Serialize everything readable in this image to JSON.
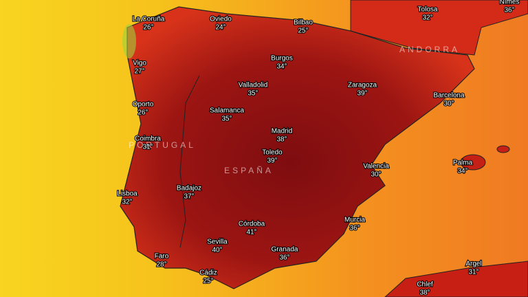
{
  "cities": [
    {
      "name": "La Coruña",
      "temp": "26°"
    },
    {
      "name": "Oviedo",
      "temp": "24°"
    },
    {
      "name": "Bilbao",
      "temp": "25°"
    },
    {
      "name": "Tolosa",
      "temp": "32°"
    },
    {
      "name": "Nîmes",
      "temp": "36°"
    },
    {
      "name": "Vigo",
      "temp": "27°"
    },
    {
      "name": "Burgos",
      "temp": "34°"
    },
    {
      "name": "Valladolid",
      "temp": "35°"
    },
    {
      "name": "Zaragoza",
      "temp": "39°"
    },
    {
      "name": "Barcelona",
      "temp": "30°"
    },
    {
      "name": "Oporto",
      "temp": "26°"
    },
    {
      "name": "Salamanca",
      "temp": "35°"
    },
    {
      "name": "Madrid",
      "temp": "38°"
    },
    {
      "name": "Coimbra",
      "temp": "31°"
    },
    {
      "name": "Toledo",
      "temp": "39°"
    },
    {
      "name": "Valencia",
      "temp": "30°"
    },
    {
      "name": "Palma",
      "temp": "34°"
    },
    {
      "name": "Lisboa",
      "temp": "32°"
    },
    {
      "name": "Badajoz",
      "temp": "37°"
    },
    {
      "name": "Murcia",
      "temp": "36°"
    },
    {
      "name": "Córdoba",
      "temp": "41°"
    },
    {
      "name": "Sevilla",
      "temp": "40°"
    },
    {
      "name": "Granada",
      "temp": "36°"
    },
    {
      "name": "Faro",
      "temp": "28°"
    },
    {
      "name": "Cádiz",
      "temp": "25°"
    },
    {
      "name": "Argel",
      "temp": "31°"
    },
    {
      "name": "Chlef",
      "temp": "38°"
    }
  ],
  "regions": [
    "PORTUGAL",
    "ESPAÑA",
    "ANDORRA"
  ]
}
